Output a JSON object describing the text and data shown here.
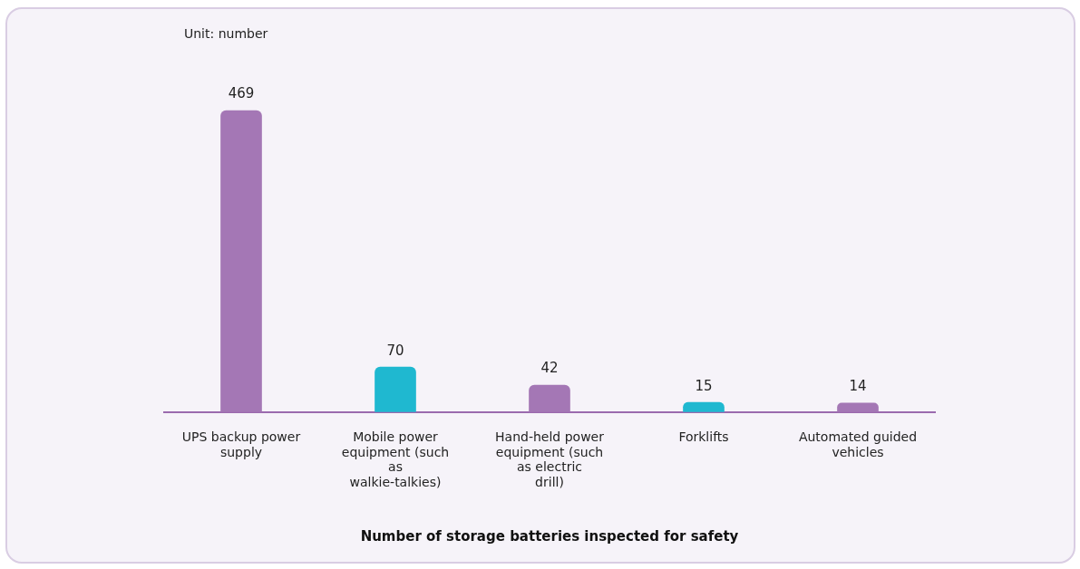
{
  "chart_data": {
    "type": "bar",
    "xlabel": "Number of storage batteries inspected for safety",
    "annotations": [
      "Unit: number"
    ],
    "categories": [
      "UPS backup power supply",
      "Mobile power equipment (such as walkie-talkies)",
      "Hand-held power equipment (such as electric drill)",
      "Forklifts",
      "Automated guided vehicles"
    ],
    "values": [
      469,
      70,
      42,
      15,
      14
    ],
    "colors": [
      "#a477b5",
      "#1fb8d0",
      "#a477b5",
      "#1fb8d0",
      "#a477b5"
    ],
    "data_labels": true,
    "relative": false,
    "grid": false,
    "legend": false
  }
}
